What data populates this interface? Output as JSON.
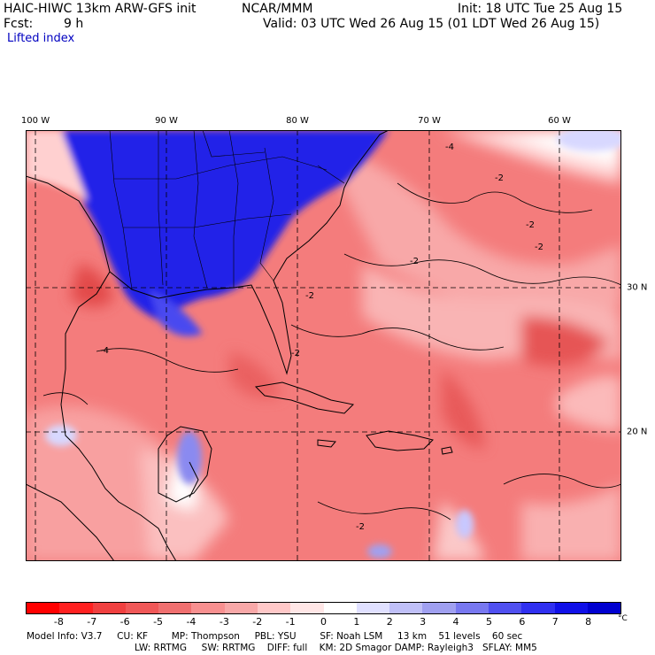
{
  "header": {
    "model": "HAIC-HIWC 13km ARW-GFS init",
    "org": "NCAR/MMM",
    "init": "Init: 18 UTC Tue 25 Aug 15",
    "fcst_label": "Fcst:",
    "fcst_value": "9 h",
    "valid": "Valid: 03 UTC Wed 26 Aug 15 (01 LDT Wed 26 Aug 15)",
    "field": "Lifted index"
  },
  "axes": {
    "lon_labels": [
      "100 W",
      "90 W",
      "80 W",
      "70 W",
      "60 W"
    ],
    "lat_labels": [
      "30 N",
      "20 N"
    ]
  },
  "map_data": {
    "extent_lon": [
      -100,
      -55
    ],
    "extent_lat": [
      11,
      40
    ],
    "contour_labels": [
      "-2",
      "-2",
      "-2",
      "-4",
      "-2",
      "-2",
      "-4",
      "-2",
      "-2"
    ],
    "colors": {
      "land_cool": "#1010e0",
      "strong_neg": "#e85050",
      "weak_neg": "#ffd0d0",
      "neutral": "#ffffff"
    }
  },
  "colorbar": {
    "unit": "°C",
    "ticks": [
      "-8",
      "-7",
      "-6",
      "-5",
      "-4",
      "-3",
      "-2",
      "-1",
      "0",
      "1",
      "2",
      "3",
      "4",
      "5",
      "6",
      "7",
      "8"
    ],
    "colors": [
      "#ff0000",
      "#ff2020",
      "#f04040",
      "#f05858",
      "#f07070",
      "#f89090",
      "#f8a8a8",
      "#ffc8c8",
      "#ffe6e6",
      "#ffffff",
      "#e0e0ff",
      "#c0c0f8",
      "#a0a0f0",
      "#7878f0",
      "#5050f0",
      "#3030f0",
      "#1010e8",
      "#0000d0"
    ]
  },
  "footer": {
    "line1": "Model Info: V3.7     CU: KF        MP: Thompson     PBL: YSU        SF: Noah LSM     13 km    51 levels    60 sec",
    "line2": "LW: RRTMG     SW: RRTMG    DIFF: full    KM: 2D Smagor DAMP: Rayleigh3   SFLAY: MM5"
  }
}
